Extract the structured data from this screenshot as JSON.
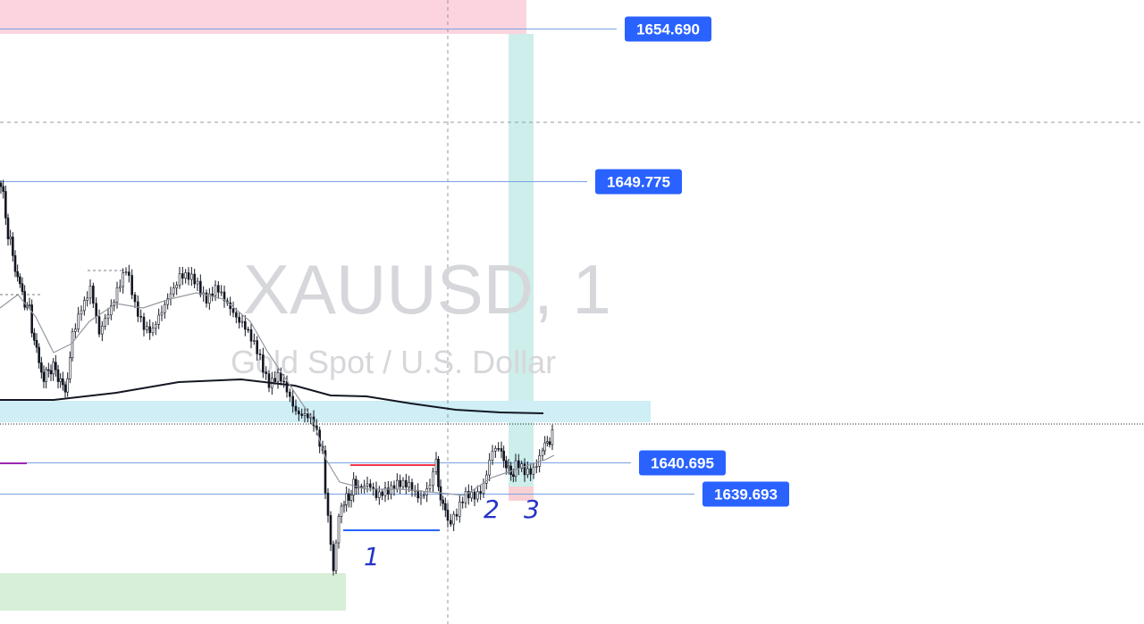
{
  "chart_data": {
    "type": "candlestick",
    "symbol": "XAUUSD",
    "interval": "1",
    "description": "Gold Spot / U.S. Dollar",
    "ylim": [
      1635.5,
      1655.6
    ],
    "price_levels": [
      {
        "label": "1654.690",
        "value": 1654.69
      },
      {
        "label": "1649.775",
        "value": 1649.775
      },
      {
        "label": "1640.695",
        "value": 1640.695
      },
      {
        "label": "1639.693",
        "value": 1639.693
      }
    ],
    "annotations": [
      "1",
      "2",
      "3"
    ],
    "colors": {
      "price_label": "#2962ff",
      "level_line": "#7aa2e3",
      "candle": "#131722",
      "ma_slow": "#131722",
      "ma_fast": "#9598a1",
      "zone_pink": "#fbd4df",
      "zone_cyan": "#cfeef6",
      "zone_teal": "#cdeeea",
      "zone_green": "#d7efd8",
      "resistance": "#f23645",
      "support": "#2962ff",
      "annotation": "#2433c8"
    }
  }
}
